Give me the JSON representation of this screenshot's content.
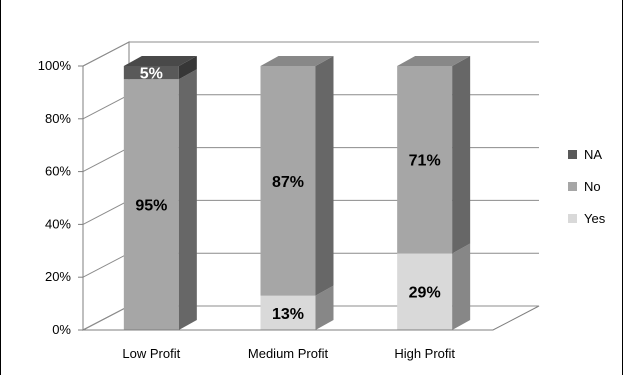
{
  "chart_data": {
    "type": "bar",
    "stacked": true,
    "style": "3d-stacked-column-100-percent",
    "categories": [
      "Low Profit",
      "Medium Profit",
      "High Profit"
    ],
    "series": [
      {
        "name": "Yes",
        "values": [
          0,
          13,
          29
        ],
        "color": "#d9d9d9"
      },
      {
        "name": "No",
        "values": [
          95,
          87,
          71
        ],
        "color": "#a6a6a6"
      },
      {
        "name": "NA",
        "values": [
          5,
          0,
          0
        ],
        "color": "#595959"
      }
    ],
    "data_labels": [
      [
        "",
        "13%",
        "29%"
      ],
      [
        "95%",
        "87%",
        "71%"
      ],
      [
        "5%",
        "",
        ""
      ]
    ],
    "ylim": [
      0,
      100
    ],
    "yticks": [
      "0%",
      "20%",
      "40%",
      "60%",
      "80%",
      "100%"
    ],
    "grid": true,
    "legend_position": "right"
  }
}
